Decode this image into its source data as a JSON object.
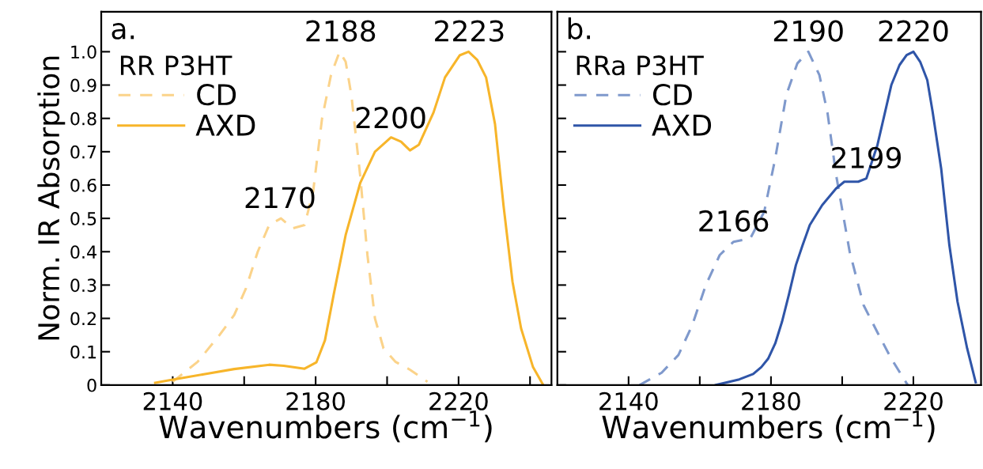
{
  "chart_data": [
    {
      "type": "line",
      "xlabel": "Wavenumbers (cm$^{−1}$)",
      "ylabel": "Norm. IR Absorption",
      "legend_title": "RR P3HT",
      "legend": "top left",
      "xlim": [
        2120,
        2246
      ],
      "xticks": [
        2140,
        {
          "value": 2160,
          "label": null
        },
        2180,
        {
          "value": 2200,
          "label": null
        },
        2220,
        {
          "value": 2240,
          "label": null
        }
      ],
      "ylim": [
        0,
        1.12
      ],
      "yticks": [
        0,
        0.1,
        0.2,
        0.3,
        0.4,
        0.5,
        0.6,
        0.7,
        0.8,
        0.9,
        {
          "value": 1.0,
          "label": "1.0"
        }
      ],
      "annotations": [
        "a.",
        {
          "text": "2188",
          "x": 2187,
          "y": 1.0
        },
        {
          "text": "2223",
          "x": 2223,
          "y": 1.0
        },
        {
          "text": "2200",
          "x": 2201,
          "y": 0.74
        },
        {
          "text": "2170",
          "x": 2170,
          "y": 0.5
        }
      ],
      "series": [
        {
          "name": "CD",
          "color": "#fbd38a",
          "line_style": "dashed",
          "x": [
            2140,
            2147,
            2153.1,
            2157.2,
            2160.5,
            2163.8,
            2167,
            2170.3,
            2173.6,
            2176.9,
            2179.3,
            2181.8,
            2184.3,
            2186.7,
            2188.4,
            2190,
            2192.5,
            2194.5,
            2196.6,
            2199,
            2202.3,
            2206.4,
            2211.3
          ],
          "values": [
            0.01,
            0.07,
            0.15,
            0.21,
            0.29,
            0.4,
            0.48,
            0.5,
            0.47,
            0.48,
            0.58,
            0.8,
            0.93,
            1.0,
            0.97,
            0.87,
            0.625,
            0.39,
            0.2,
            0.11,
            0.07,
            0.046,
            0.01
          ]
        },
        {
          "name": "AXD",
          "color": "#f7b52a",
          "line_style": "solid",
          "x": [
            2135.1,
            2140,
            2149,
            2157.2,
            2167,
            2171.1,
            2176.9,
            2180.2,
            2182.6,
            2185.1,
            2188.4,
            2192.5,
            2196.6,
            2201.1,
            2203.9,
            2206.4,
            2208.9,
            2213,
            2216.2,
            2220.3,
            2222.8,
            2225.2,
            2227.7,
            2230.2,
            2232.6,
            2235.1,
            2237.5,
            2240.8,
            2243.7
          ],
          "values": [
            0.007,
            0.016,
            0.033,
            0.048,
            0.061,
            0.058,
            0.049,
            0.068,
            0.134,
            0.274,
            0.45,
            0.607,
            0.7,
            0.743,
            0.73,
            0.704,
            0.721,
            0.818,
            0.923,
            0.989,
            1.0,
            0.976,
            0.923,
            0.783,
            0.537,
            0.31,
            0.17,
            0.055,
            0
          ]
        }
      ]
    },
    {
      "type": "line",
      "xlabel": "Wavenumbers (cm$^{−1}$)",
      "legend_title": "RRa P3HT",
      "legend": "top left",
      "tick_labels": "x",
      "xlim": [
        2120,
        2239
      ],
      "xticks": [
        2140,
        {
          "value": 2160,
          "label": null
        },
        2180,
        {
          "value": 2200,
          "label": null
        },
        2220
      ],
      "ylim": [
        0,
        1.12
      ],
      "yticks": [
        0,
        0.1,
        0.2,
        0.3,
        0.4,
        0.5,
        0.6,
        0.7,
        0.8,
        0.9,
        1.0
      ],
      "annotations": [
        "b.",
        {
          "text": "2190",
          "x": 2190.5,
          "y": 1.0
        },
        {
          "text": "2220",
          "x": 2220,
          "y": 1.0
        },
        {
          "text": "2199",
          "x": 2206.8,
          "y": 0.62
        },
        {
          "text": "2166",
          "x": 2169.5,
          "y": 0.43
        }
      ],
      "series": [
        {
          "name": "CD",
          "color": "#7f99cc",
          "line_style": "dashed",
          "x": [
            2143.1,
            2149.3,
            2154.0,
            2157.9,
            2161.7,
            2165.6,
            2169.5,
            2174.2,
            2178.1,
            2181.2,
            2184.3,
            2187.4,
            2190.5,
            2193.6,
            2195.9,
            2198.3,
            2202.1,
            2206.0,
            2209.9,
            2213.8,
            2218.4
          ],
          "values": [
            0,
            0.037,
            0.09,
            0.18,
            0.3,
            0.39,
            0.43,
            0.44,
            0.52,
            0.68,
            0.87,
            0.965,
            1.0,
            0.93,
            0.815,
            0.63,
            0.4,
            0.24,
            0.158,
            0.079,
            0
          ]
        },
        {
          "name": "AXD",
          "color": "#2f55a8",
          "line_style": "solid",
          "x": [
            2164.5,
            2171.1,
            2175.0,
            2177.3,
            2179.2,
            2181.2,
            2183.1,
            2185.0,
            2187.0,
            2188.9,
            2190.9,
            2194.4,
            2198.3,
            2200.6,
            2204.5,
            2206.8,
            2209.9,
            2213.8,
            2216.1,
            2218.1,
            2220.0,
            2221.9,
            2223.9,
            2225.4,
            2227.8,
            2230.1,
            2232.4,
            2235.1,
            2237.5
          ],
          "values": [
            0,
            0.017,
            0.033,
            0.054,
            0.079,
            0.125,
            0.19,
            0.27,
            0.36,
            0.42,
            0.48,
            0.54,
            0.59,
            0.61,
            0.61,
            0.62,
            0.72,
            0.9,
            0.96,
            0.99,
            1.0,
            0.97,
            0.915,
            0.82,
            0.65,
            0.42,
            0.25,
            0.11,
            0.008
          ]
        }
      ]
    }
  ]
}
